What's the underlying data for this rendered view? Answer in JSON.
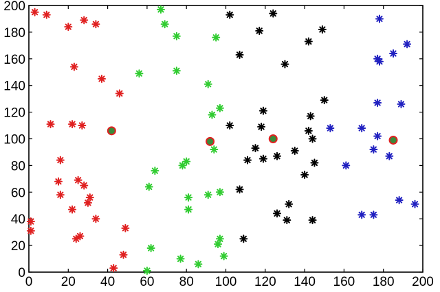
{
  "chart_data": {
    "type": "scatter",
    "title": "",
    "xlabel": "",
    "ylabel": "",
    "xlim": [
      0,
      200
    ],
    "ylim": [
      0,
      200
    ],
    "xticks": [
      "0",
      "20",
      "40",
      "60",
      "80",
      "100",
      "120",
      "140",
      "160",
      "180",
      "200"
    ],
    "yticks": [
      "0",
      "20",
      "40",
      "60",
      "80",
      "100",
      "120",
      "140",
      "160",
      "180",
      "200"
    ],
    "grid": false,
    "legend": "none",
    "series": [
      {
        "color": "#e02020",
        "marker": "star",
        "points": [
          [
            3,
            195
          ],
          [
            9,
            193
          ],
          [
            20,
            184
          ],
          [
            28,
            189
          ],
          [
            34,
            186
          ],
          [
            23,
            154
          ],
          [
            37,
            145
          ],
          [
            46,
            134
          ],
          [
            11,
            111
          ],
          [
            22,
            111
          ],
          [
            27,
            110
          ],
          [
            16,
            84
          ],
          [
            15,
            68
          ],
          [
            16,
            58
          ],
          [
            25,
            69
          ],
          [
            28,
            65
          ],
          [
            31,
            56
          ],
          [
            30,
            52
          ],
          [
            22,
            47
          ],
          [
            34,
            40
          ],
          [
            24,
            25
          ],
          [
            26,
            27
          ],
          [
            49,
            33
          ],
          [
            48,
            13
          ],
          [
            43,
            3
          ],
          [
            1,
            38
          ],
          [
            1,
            31
          ]
        ]
      },
      {
        "color": "#30cc30",
        "marker": "star",
        "points": [
          [
            67,
            197
          ],
          [
            69,
            186
          ],
          [
            75,
            177
          ],
          [
            95,
            176
          ],
          [
            56,
            149
          ],
          [
            75,
            151
          ],
          [
            91,
            141
          ],
          [
            97,
            123
          ],
          [
            93,
            118
          ],
          [
            94,
            92
          ],
          [
            64,
            76
          ],
          [
            78,
            80
          ],
          [
            80,
            83
          ],
          [
            61,
            64
          ],
          [
            81,
            56
          ],
          [
            81,
            47
          ],
          [
            91,
            58
          ],
          [
            97,
            60
          ],
          [
            62,
            18
          ],
          [
            77,
            10
          ],
          [
            86,
            6
          ],
          [
            60,
            1
          ],
          [
            96,
            21
          ],
          [
            97,
            25
          ],
          [
            99,
            12
          ]
        ]
      },
      {
        "color": "#000000",
        "marker": "star",
        "points": [
          [
            102,
            193
          ],
          [
            124,
            194
          ],
          [
            117,
            181
          ],
          [
            149,
            182
          ],
          [
            107,
            163
          ],
          [
            142,
            173
          ],
          [
            130,
            156
          ],
          [
            150,
            129
          ],
          [
            119,
            121
          ],
          [
            118,
            109
          ],
          [
            102,
            110
          ],
          [
            143,
            117
          ],
          [
            142,
            106
          ],
          [
            144,
            100
          ],
          [
            115,
            93
          ],
          [
            111,
            84
          ],
          [
            119,
            85
          ],
          [
            126,
            87
          ],
          [
            135,
            91
          ],
          [
            145,
            82
          ],
          [
            140,
            73
          ],
          [
            107,
            62
          ],
          [
            132,
            51
          ],
          [
            126,
            44
          ],
          [
            131,
            39
          ],
          [
            144,
            39
          ],
          [
            109,
            25
          ]
        ]
      },
      {
        "color": "#2020c0",
        "marker": "star",
        "points": [
          [
            178,
            190
          ],
          [
            185,
            164
          ],
          [
            192,
            171
          ],
          [
            177,
            160
          ],
          [
            178,
            158
          ],
          [
            177,
            127
          ],
          [
            189,
            126
          ],
          [
            169,
            108
          ],
          [
            177,
            102
          ],
          [
            175,
            92
          ],
          [
            183,
            87
          ],
          [
            153,
            108
          ],
          [
            161,
            80
          ],
          [
            188,
            54
          ],
          [
            196,
            51
          ],
          [
            169,
            43
          ],
          [
            175,
            43
          ]
        ]
      },
      {
        "color": "#e02020",
        "marker": "circle",
        "points": [
          [
            42,
            106
          ],
          [
            92,
            98
          ],
          [
            124,
            100
          ],
          [
            185,
            99
          ]
        ]
      }
    ]
  }
}
